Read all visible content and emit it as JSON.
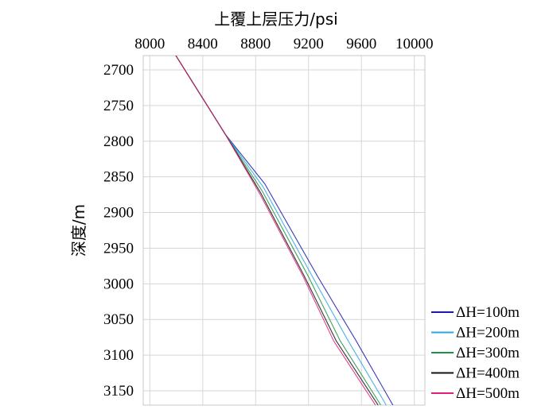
{
  "chart_data": {
    "type": "line",
    "xlabel": "上覆上层压力/psi",
    "ylabel": "深度/m",
    "x_axis_position": "top",
    "y_axis_inverted": true,
    "xlim": [
      7950,
      10080
    ],
    "ylim": [
      2680,
      3170
    ],
    "x_ticks": [
      8000,
      8400,
      8800,
      9200,
      9600,
      10000
    ],
    "y_ticks": [
      2700,
      2750,
      2800,
      2850,
      2900,
      2950,
      3000,
      3050,
      3100,
      3150
    ],
    "grid": true,
    "legend_position": "bottom-right",
    "series": [
      {
        "name": "ΔH=100m",
        "color": "#1a1ab0",
        "points": [
          [
            8190,
            2678
          ],
          [
            8570,
            2790
          ],
          [
            8870,
            2860
          ],
          [
            9270,
            2990
          ],
          [
            9560,
            3080
          ],
          [
            9850,
            3174
          ]
        ]
      },
      {
        "name": "ΔH=200m",
        "color": "#29a8e0",
        "points": [
          [
            8190,
            2678
          ],
          [
            8570,
            2790
          ],
          [
            8860,
            2865
          ],
          [
            9230,
            2990
          ],
          [
            9500,
            3080
          ],
          [
            9800,
            3174
          ]
        ]
      },
      {
        "name": "ΔH=300m",
        "color": "#1f9440",
        "points": [
          [
            8190,
            2678
          ],
          [
            8570,
            2790
          ],
          [
            8850,
            2870
          ],
          [
            9200,
            2990
          ],
          [
            9440,
            3080
          ],
          [
            9760,
            3174
          ]
        ]
      },
      {
        "name": "ΔH=400m",
        "color": "#111111",
        "points": [
          [
            8190,
            2678
          ],
          [
            8570,
            2790
          ],
          [
            8840,
            2873
          ],
          [
            9170,
            2990
          ],
          [
            9410,
            3080
          ],
          [
            9740,
            3174
          ]
        ]
      },
      {
        "name": "ΔH=500m",
        "color": "#e0207a",
        "points": [
          [
            8190,
            2678
          ],
          [
            8570,
            2790
          ],
          [
            8835,
            2875
          ],
          [
            9160,
            2990
          ],
          [
            9390,
            3080
          ],
          [
            9720,
            3174
          ]
        ]
      }
    ]
  }
}
